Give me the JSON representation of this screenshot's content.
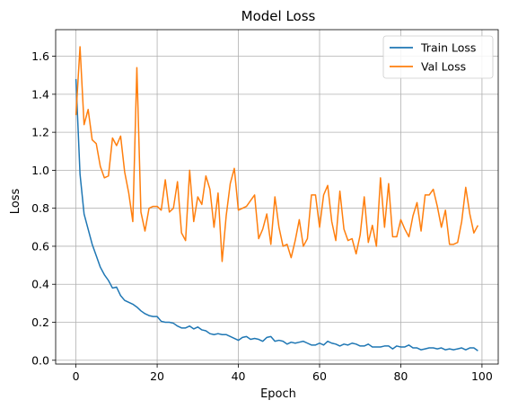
{
  "chart_data": {
    "type": "line",
    "title": "Model Loss",
    "xlabel": "Epoch",
    "ylabel": "Loss",
    "xlim": [
      -5,
      104
    ],
    "ylim": [
      -0.02,
      1.74
    ],
    "xticks": [
      0,
      20,
      40,
      60,
      80,
      100
    ],
    "yticks": [
      0.0,
      0.2,
      0.4,
      0.6,
      0.8,
      1.0,
      1.2,
      1.4,
      1.6
    ],
    "xtick_labels": [
      "0",
      "20",
      "40",
      "60",
      "80",
      "100"
    ],
    "ytick_labels": [
      "0.0",
      "0.2",
      "0.4",
      "0.6",
      "0.8",
      "1.0",
      "1.2",
      "1.4",
      "1.6"
    ],
    "grid": true,
    "legend_position": "top-right",
    "series": [
      {
        "name": "Train Loss",
        "color": "#1f77b4",
        "values": [
          1.48,
          0.98,
          0.77,
          0.69,
          0.61,
          0.55,
          0.49,
          0.45,
          0.42,
          0.38,
          0.385,
          0.34,
          0.315,
          0.305,
          0.295,
          0.28,
          0.26,
          0.245,
          0.235,
          0.23,
          0.23,
          0.205,
          0.2,
          0.2,
          0.195,
          0.18,
          0.17,
          0.17,
          0.18,
          0.165,
          0.175,
          0.16,
          0.155,
          0.14,
          0.135,
          0.14,
          0.135,
          0.135,
          0.125,
          0.115,
          0.105,
          0.12,
          0.125,
          0.11,
          0.115,
          0.11,
          0.1,
          0.12,
          0.125,
          0.1,
          0.105,
          0.1,
          0.085,
          0.095,
          0.09,
          0.095,
          0.1,
          0.09,
          0.08,
          0.08,
          0.09,
          0.08,
          0.1,
          0.09,
          0.085,
          0.075,
          0.085,
          0.08,
          0.09,
          0.085,
          0.075,
          0.075,
          0.085,
          0.07,
          0.07,
          0.07,
          0.075,
          0.075,
          0.06,
          0.075,
          0.07,
          0.07,
          0.08,
          0.065,
          0.065,
          0.055,
          0.06,
          0.065,
          0.065,
          0.06,
          0.065,
          0.055,
          0.06,
          0.055,
          0.06,
          0.065,
          0.055,
          0.065,
          0.065,
          0.05
        ]
      },
      {
        "name": "Val Loss",
        "color": "#ff7f0e",
        "values": [
          1.29,
          1.65,
          1.24,
          1.32,
          1.16,
          1.14,
          1.02,
          0.96,
          0.97,
          1.17,
          1.13,
          1.18,
          0.99,
          0.88,
          0.73,
          1.54,
          0.78,
          0.68,
          0.8,
          0.81,
          0.81,
          0.79,
          0.95,
          0.78,
          0.8,
          0.94,
          0.67,
          0.63,
          1.0,
          0.73,
          0.86,
          0.82,
          0.97,
          0.9,
          0.7,
          0.88,
          0.52,
          0.76,
          0.93,
          1.01,
          0.79,
          0.8,
          0.81,
          0.84,
          0.87,
          0.64,
          0.69,
          0.77,
          0.61,
          0.86,
          0.7,
          0.6,
          0.61,
          0.54,
          0.63,
          0.74,
          0.6,
          0.64,
          0.87,
          0.87,
          0.7,
          0.87,
          0.92,
          0.73,
          0.63,
          0.89,
          0.69,
          0.63,
          0.64,
          0.56,
          0.66,
          0.86,
          0.62,
          0.71,
          0.6,
          0.96,
          0.7,
          0.93,
          0.65,
          0.65,
          0.74,
          0.69,
          0.65,
          0.76,
          0.83,
          0.68,
          0.87,
          0.87,
          0.9,
          0.81,
          0.7,
          0.79,
          0.61,
          0.61,
          0.62,
          0.73,
          0.91,
          0.77,
          0.67,
          0.71
        ]
      }
    ]
  }
}
